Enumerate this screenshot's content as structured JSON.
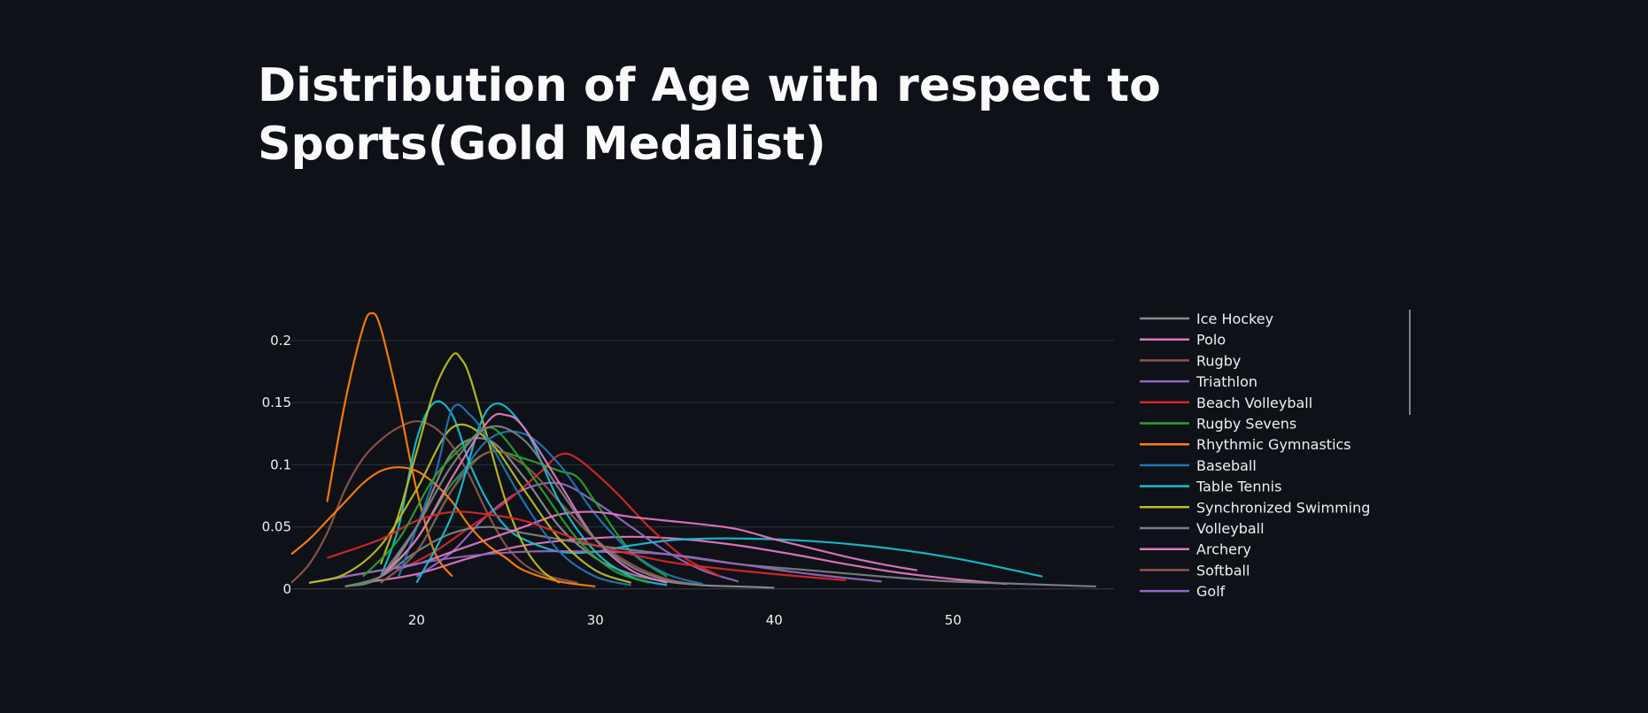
{
  "chart_data": {
    "type": "line",
    "title": "Distribution of Age with respect to Sports(Gold Medalist)",
    "xlabel": "",
    "ylabel": "",
    "xlim": [
      13,
      59
    ],
    "ylim": [
      -0.003,
      0.232
    ],
    "x_ticks": [
      20,
      30,
      40,
      50
    ],
    "y_ticks": [
      0,
      0.05,
      0.1,
      0.15,
      0.2
    ],
    "y_tick_labels": [
      "0",
      "0.05",
      "0.1",
      "0.15",
      "0.2"
    ],
    "grid": "horizontal",
    "legend_position": "right",
    "series": [
      {
        "name": "Ice Hockey",
        "color": "#8c8c8c",
        "x": [
          16,
          18,
          20,
          22,
          24,
          26,
          28,
          30,
          32,
          34,
          36,
          38,
          40
        ],
        "y": [
          0.002,
          0.01,
          0.05,
          0.11,
          0.12,
          0.09,
          0.05,
          0.025,
          0.012,
          0.006,
          0.003,
          0.002,
          0.001
        ]
      },
      {
        "name": "Polo",
        "color": "#e377c2",
        "x": [
          17,
          20,
          23,
          26,
          29,
          32,
          35,
          38,
          41,
          44,
          47,
          50,
          53
        ],
        "y": [
          0.005,
          0.012,
          0.025,
          0.035,
          0.04,
          0.042,
          0.04,
          0.035,
          0.028,
          0.02,
          0.013,
          0.008,
          0.004
        ]
      },
      {
        "name": "Rugby",
        "color": "#8c564b",
        "x": [
          13,
          14,
          15,
          16,
          17,
          18,
          19,
          20,
          21,
          22,
          23,
          24,
          25,
          26,
          27,
          28,
          29
        ],
        "y": [
          0.005,
          0.02,
          0.045,
          0.08,
          0.105,
          0.12,
          0.13,
          0.135,
          0.13,
          0.115,
          0.09,
          0.06,
          0.035,
          0.02,
          0.012,
          0.008,
          0.005
        ]
      },
      {
        "name": "Triathlon",
        "color": "#9467bd",
        "x": [
          20,
          22,
          24,
          26,
          28,
          30,
          32,
          34,
          36,
          38
        ],
        "y": [
          0.01,
          0.03,
          0.06,
          0.08,
          0.085,
          0.07,
          0.05,
          0.03,
          0.015,
          0.006
        ]
      },
      {
        "name": "Beach Volleyball",
        "color": "#d62728",
        "x": [
          19,
          21,
          23,
          25,
          27,
          28,
          29,
          31,
          33,
          35,
          37
        ],
        "y": [
          0.015,
          0.03,
          0.05,
          0.07,
          0.095,
          0.108,
          0.105,
          0.08,
          0.05,
          0.025,
          0.01
        ]
      },
      {
        "name": "Rugby Sevens",
        "color": "#2ca02c",
        "x": [
          16,
          18,
          20,
          22,
          24,
          26,
          28,
          29,
          30,
          32,
          34
        ],
        "y": [
          0.002,
          0.01,
          0.04,
          0.085,
          0.11,
          0.105,
          0.095,
          0.09,
          0.07,
          0.03,
          0.01
        ]
      },
      {
        "name": "Rhythmic Gymnastics",
        "color": "#ff7f0e",
        "x": [
          15,
          16,
          17,
          17.5,
          18,
          19,
          20,
          21,
          22
        ],
        "y": [
          0.07,
          0.15,
          0.21,
          0.222,
          0.21,
          0.15,
          0.08,
          0.03,
          0.01
        ]
      },
      {
        "name": "Baseball",
        "color": "#1f77b4",
        "x": [
          18,
          20,
          22,
          24,
          26,
          28,
          30,
          32,
          34,
          36
        ],
        "y": [
          0.005,
          0.03,
          0.08,
          0.12,
          0.125,
          0.1,
          0.06,
          0.03,
          0.012,
          0.004
        ]
      },
      {
        "name": "Table Tennis",
        "color": "#17becf",
        "x": [
          18,
          19,
          20,
          21,
          22,
          23,
          24,
          25,
          26,
          28,
          30,
          32,
          35,
          40,
          45,
          50,
          55
        ],
        "y": [
          0.01,
          0.05,
          0.12,
          0.15,
          0.14,
          0.1,
          0.07,
          0.05,
          0.04,
          0.03,
          0.03,
          0.035,
          0.04,
          0.04,
          0.035,
          0.025,
          0.01
        ]
      },
      {
        "name": "Synchronized Swimming",
        "color": "#bcbd22",
        "x": [
          18,
          19,
          20,
          21,
          22,
          22.5,
          23,
          24,
          25,
          26,
          27,
          28
        ],
        "y": [
          0.02,
          0.06,
          0.11,
          0.16,
          0.188,
          0.185,
          0.17,
          0.12,
          0.07,
          0.035,
          0.015,
          0.005
        ]
      },
      {
        "name": "Volleyball",
        "color": "#7f7f7f",
        "x": [
          16,
          18,
          20,
          22,
          24,
          26,
          28,
          30,
          34,
          38,
          42,
          46,
          50,
          54,
          58
        ],
        "y": [
          0.002,
          0.01,
          0.03,
          0.045,
          0.05,
          0.045,
          0.04,
          0.035,
          0.028,
          0.02,
          0.015,
          0.01,
          0.006,
          0.004,
          0.002
        ]
      },
      {
        "name": "Archery",
        "color": "#e377c2",
        "x": [
          14,
          16,
          18,
          20,
          22,
          24,
          26,
          28,
          30,
          32,
          34,
          36,
          38,
          40,
          42,
          44,
          46,
          48
        ],
        "y": [
          0.005,
          0.01,
          0.015,
          0.02,
          0.03,
          0.04,
          0.05,
          0.06,
          0.062,
          0.058,
          0.055,
          0.052,
          0.048,
          0.04,
          0.033,
          0.026,
          0.02,
          0.015
        ]
      },
      {
        "name": "Softball",
        "color": "#8c564b",
        "x": [
          18,
          20,
          22,
          24,
          26,
          28,
          30,
          32,
          34,
          36
        ],
        "y": [
          0.005,
          0.03,
          0.08,
          0.11,
          0.1,
          0.07,
          0.04,
          0.02,
          0.008,
          0.003
        ]
      },
      {
        "name": "Golf",
        "color": "#9467bd",
        "x": [
          14,
          18,
          22,
          26,
          30,
          34,
          38,
          42,
          46
        ],
        "y": [
          0.005,
          0.015,
          0.025,
          0.03,
          0.03,
          0.028,
          0.02,
          0.012,
          0.006
        ]
      },
      {
        "name": "",
        "color": "#ff7f0e",
        "x": [
          13,
          14,
          15,
          16,
          17,
          18,
          19,
          20,
          21,
          22,
          23,
          24,
          25,
          26,
          28,
          30
        ],
        "y": [
          0.028,
          0.04,
          0.055,
          0.07,
          0.085,
          0.095,
          0.098,
          0.095,
          0.085,
          0.07,
          0.05,
          0.035,
          0.025,
          0.015,
          0.006,
          0.002
        ]
      },
      {
        "name": "",
        "color": "#bcbd22",
        "x": [
          14,
          16,
          18,
          20,
          22,
          24,
          26,
          28,
          30,
          32
        ],
        "y": [
          0.005,
          0.012,
          0.035,
          0.08,
          0.13,
          0.12,
          0.08,
          0.04,
          0.015,
          0.005
        ]
      },
      {
        "name": "",
        "color": "#17becf",
        "x": [
          20,
          22,
          24,
          26,
          28,
          30,
          32,
          34
        ],
        "y": [
          0.005,
          0.06,
          0.145,
          0.13,
          0.07,
          0.03,
          0.01,
          0.003
        ]
      },
      {
        "name": "",
        "color": "#1f77b4",
        "x": [
          19,
          21,
          22,
          23,
          24,
          26,
          28,
          30,
          32
        ],
        "y": [
          0.01,
          0.09,
          0.145,
          0.14,
          0.12,
          0.07,
          0.03,
          0.01,
          0.003
        ]
      },
      {
        "name": "",
        "color": "#e377c2",
        "x": [
          18,
          20,
          22,
          24,
          25,
          26,
          28,
          30,
          32,
          34
        ],
        "y": [
          0.01,
          0.04,
          0.09,
          0.135,
          0.14,
          0.13,
          0.085,
          0.04,
          0.015,
          0.005
        ]
      },
      {
        "name": "",
        "color": "#d62728",
        "x": [
          15,
          18,
          20,
          22,
          24,
          26,
          28,
          30,
          32,
          34,
          36,
          40,
          44
        ],
        "y": [
          0.025,
          0.04,
          0.055,
          0.062,
          0.06,
          0.055,
          0.045,
          0.035,
          0.028,
          0.022,
          0.018,
          0.012,
          0.007
        ]
      },
      {
        "name": "",
        "color": "#2ca02c",
        "x": [
          17,
          19,
          21,
          23,
          24,
          25,
          27,
          29,
          31,
          33
        ],
        "y": [
          0.01,
          0.04,
          0.09,
          0.12,
          0.13,
          0.12,
          0.08,
          0.04,
          0.015,
          0.005
        ]
      },
      {
        "name": "",
        "color": "#7f7f7f",
        "x": [
          18,
          20,
          22,
          24,
          26,
          28,
          30,
          32,
          34,
          36
        ],
        "y": [
          0.01,
          0.05,
          0.1,
          0.13,
          0.12,
          0.08,
          0.04,
          0.018,
          0.007,
          0.003
        ]
      }
    ]
  }
}
